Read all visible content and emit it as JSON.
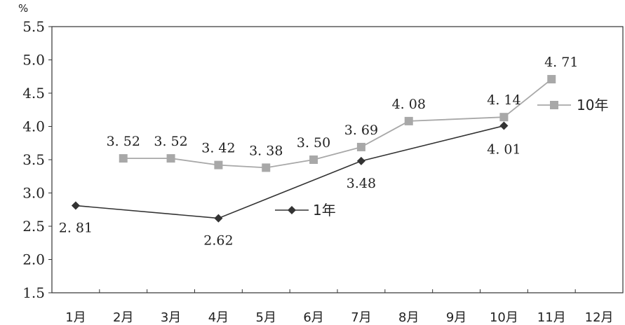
{
  "chart_data": {
    "type": "line",
    "unit": "%",
    "categories": [
      "1月",
      "2月",
      "3月",
      "4月",
      "5月",
      "6月",
      "7月",
      "8月",
      "9月",
      "10月",
      "11月",
      "12月"
    ],
    "ylim": [
      1.5,
      5.5
    ],
    "yticks": [
      "1.5",
      "2.0",
      "2.5",
      "3.0",
      "3.5",
      "4.0",
      "4.5",
      "5.0",
      "5.5"
    ],
    "grid": false,
    "legend_position": "inline",
    "series": [
      {
        "name": "1年",
        "color": "#333333",
        "marker": "diamond",
        "points": [
          {
            "x": "1月",
            "y": 2.81,
            "label": "2. 81"
          },
          {
            "x": "4月",
            "y": 2.62,
            "label": "2.62"
          },
          {
            "x": "7月",
            "y": 3.48,
            "label": "3.48"
          },
          {
            "x": "10月",
            "y": 4.01,
            "label": "4. 01"
          }
        ]
      },
      {
        "name": "10年",
        "color": "#a8a8a8",
        "marker": "square",
        "points": [
          {
            "x": "2月",
            "y": 3.52,
            "label": "3. 52"
          },
          {
            "x": "3月",
            "y": 3.52,
            "label": "3. 52"
          },
          {
            "x": "4月",
            "y": 3.42,
            "label": "3. 42"
          },
          {
            "x": "5月",
            "y": 3.38,
            "label": "3. 38"
          },
          {
            "x": "6月",
            "y": 3.5,
            "label": "3. 50"
          },
          {
            "x": "7月",
            "y": 3.69,
            "label": "3. 69"
          },
          {
            "x": "8月",
            "y": 4.08,
            "label": "4. 08"
          },
          {
            "x": "10月",
            "y": 4.14,
            "label": "4. 14"
          },
          {
            "x": "11月",
            "y": 4.71,
            "label": "4. 71"
          }
        ]
      }
    ]
  }
}
